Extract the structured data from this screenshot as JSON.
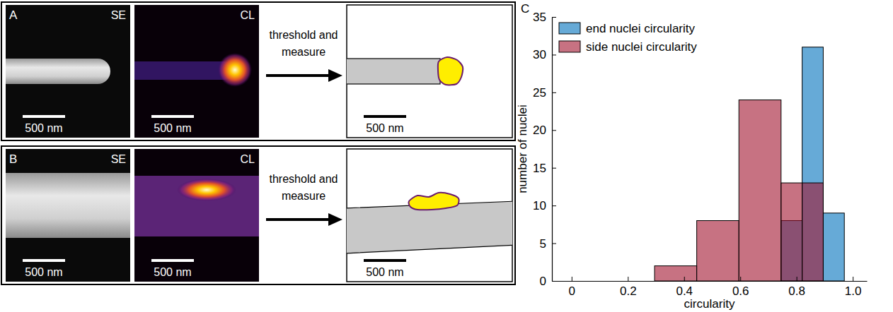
{
  "panels": [
    {
      "letter": "A",
      "images": [
        {
          "label": "SE",
          "scale_bar": "500 nm"
        },
        {
          "label": "CL",
          "scale_bar": "500 nm"
        }
      ],
      "arrow_text": [
        "threshold and",
        "measure"
      ],
      "schematic_scale_bar": "500 nm"
    },
    {
      "letter": "B",
      "images": [
        {
          "label": "SE",
          "scale_bar": "500 nm"
        },
        {
          "label": "CL",
          "scale_bar": "500 nm"
        }
      ],
      "arrow_text": [
        "threshold and",
        "measure"
      ],
      "schematic_scale_bar": "500 nm"
    }
  ],
  "chart_data": {
    "type": "histogram",
    "panel_label": "C",
    "xlabel": "circularity",
    "ylabel": "number of nuclei",
    "xlim": [
      -0.07,
      1.05
    ],
    "ylim": [
      0,
      35
    ],
    "xticks": [
      0,
      0.2,
      0.4,
      0.6,
      0.8,
      {
        "value": 1,
        "label": "1.0"
      }
    ],
    "yticks": [
      0,
      5,
      10,
      15,
      20,
      25,
      30,
      35
    ],
    "legend": "upper left",
    "series": [
      {
        "name": "end nuclei circularity",
        "color": "#0072bd",
        "bins": [
          0.745,
          0.82,
          0.895,
          0.97
        ],
        "values": [
          8,
          31,
          9
        ]
      },
      {
        "name": "side nuclei circularity",
        "color": "#a2142f",
        "bins": [
          0.295,
          0.445,
          0.595,
          0.745,
          0.82,
          0.895
        ],
        "values": [
          2,
          8,
          24,
          13,
          13
        ]
      }
    ]
  }
}
